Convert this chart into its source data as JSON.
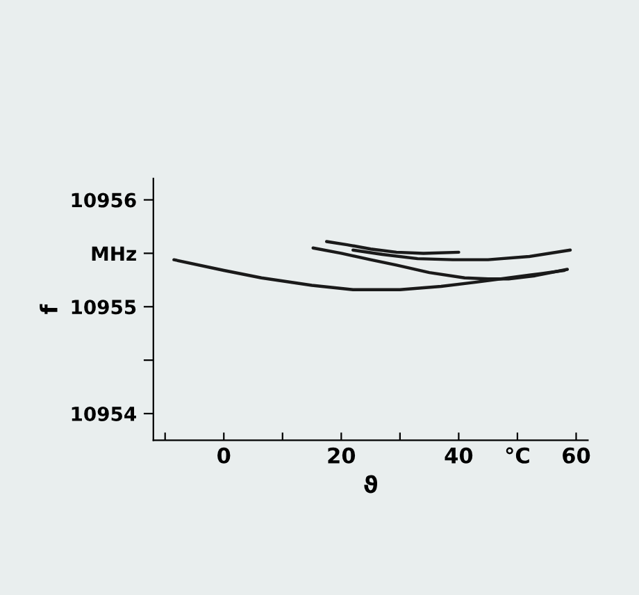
{
  "chart_data": {
    "type": "line",
    "xlabel": "ϑ",
    "ylabel": "f",
    "xlim": [
      -12,
      62
    ],
    "ylim": [
      10953.75,
      10956.2
    ],
    "xticks": [
      {
        "value": -10,
        "label": null
      },
      0,
      {
        "value": 10,
        "label": null
      },
      20,
      {
        "value": 30,
        "label": null
      },
      40,
      {
        "value": 50,
        "label": "°C"
      },
      60
    ],
    "yticks": [
      10954,
      {
        "value": 10954.5,
        "label": null
      },
      10955,
      {
        "value": 10955.5,
        "label": "MHz"
      },
      10956
    ],
    "grid": false,
    "legend": false,
    "marker": "none",
    "line_style": "solid",
    "series": [
      {
        "color": "#1a1a1a",
        "x": [
          -8.5,
          0,
          6.4,
          15,
          22,
          30,
          37,
          43,
          48.5,
          54,
          58
        ],
        "values": [
          10955.44,
          10955.34,
          10955.27,
          10955.2,
          10955.16,
          10955.16,
          10955.19,
          10955.23,
          10955.27,
          10955.31,
          10955.34
        ]
      },
      {
        "color": "#1a1a1a",
        "x": [
          15.2,
          20,
          25,
          29.4,
          35,
          41,
          45,
          48.5,
          53,
          58.5
        ],
        "values": [
          10955.55,
          10955.5,
          10955.44,
          10955.39,
          10955.32,
          10955.27,
          10955.26,
          10955.26,
          10955.29,
          10955.35
        ]
      },
      {
        "color": "#1a1a1a",
        "x": [
          17.5,
          21,
          25,
          29.4,
          34,
          40
        ],
        "values": [
          10955.61,
          10955.58,
          10955.54,
          10955.51,
          10955.5,
          10955.51
        ]
      },
      {
        "color": "#1a1a1a",
        "x": [
          22,
          27,
          33,
          39,
          45,
          52,
          59
        ],
        "values": [
          10955.53,
          10955.49,
          10955.45,
          10955.44,
          10955.44,
          10955.47,
          10955.53
        ]
      }
    ]
  }
}
